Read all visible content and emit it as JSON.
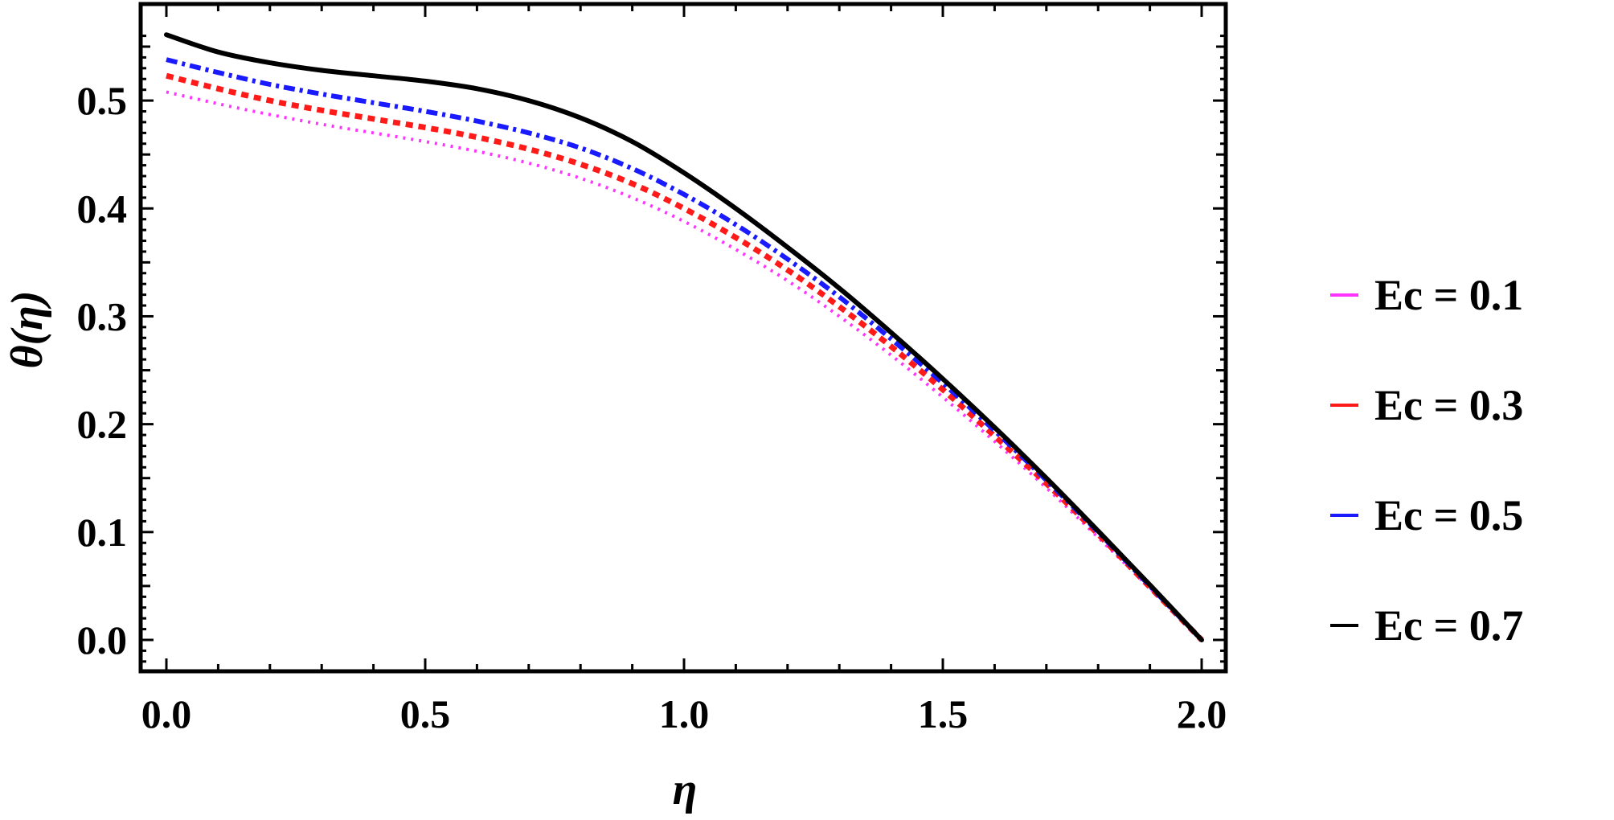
{
  "chart_data": {
    "type": "line",
    "title": "",
    "xlabel": "η",
    "ylabel": "θ(η)",
    "xlim": [
      0,
      2
    ],
    "ylim": [
      -0.03,
      0.59
    ],
    "xticks": [
      0.0,
      0.5,
      1.0,
      1.5,
      2.0
    ],
    "xtick_labels": [
      "0.0",
      "0.5",
      "1.0",
      "1.5",
      "2.0"
    ],
    "yticks": [
      0.0,
      0.1,
      0.2,
      0.3,
      0.4,
      0.5
    ],
    "ytick_labels": [
      "0.0",
      "0.1",
      "0.2",
      "0.3",
      "0.4",
      "0.5"
    ],
    "grid": false,
    "legend_position": "right",
    "x": [
      0.0,
      0.1,
      0.2,
      0.3,
      0.4,
      0.5,
      0.6,
      0.7,
      0.8,
      0.9,
      1.0,
      1.1,
      1.2,
      1.3,
      1.4,
      1.5,
      1.6,
      1.7,
      1.8,
      1.9,
      2.0
    ],
    "series": [
      {
        "name": "Ec = 0.1",
        "color": "#ff33ff",
        "style": "dotted",
        "values": [
          0.508,
          0.497,
          0.487,
          0.478,
          0.47,
          0.462,
          0.453,
          0.442,
          0.428,
          0.41,
          0.388,
          0.362,
          0.333,
          0.3,
          0.264,
          0.225,
          0.184,
          0.141,
          0.095,
          0.048,
          0.0
        ]
      },
      {
        "name": "Ec = 0.3",
        "color": "#ff1a1a",
        "style": "dashed",
        "values": [
          0.523,
          0.511,
          0.5,
          0.491,
          0.483,
          0.475,
          0.466,
          0.455,
          0.441,
          0.423,
          0.4,
          0.373,
          0.343,
          0.309,
          0.272,
          0.232,
          0.189,
          0.145,
          0.098,
          0.049,
          0.0
        ]
      },
      {
        "name": "Ec = 0.5",
        "color": "#1a1aff",
        "style": "dashdot",
        "values": [
          0.538,
          0.526,
          0.515,
          0.506,
          0.498,
          0.49,
          0.481,
          0.47,
          0.456,
          0.437,
          0.413,
          0.385,
          0.353,
          0.318,
          0.279,
          0.238,
          0.194,
          0.148,
          0.1,
          0.05,
          0.0
        ]
      },
      {
        "name": "Ec = 0.7",
        "color": "#000000",
        "style": "solid",
        "values": [
          0.561,
          0.545,
          0.535,
          0.528,
          0.523,
          0.518,
          0.511,
          0.5,
          0.484,
          0.462,
          0.433,
          0.4,
          0.364,
          0.326,
          0.285,
          0.242,
          0.197,
          0.15,
          0.101,
          0.051,
          0.0
        ]
      }
    ]
  }
}
